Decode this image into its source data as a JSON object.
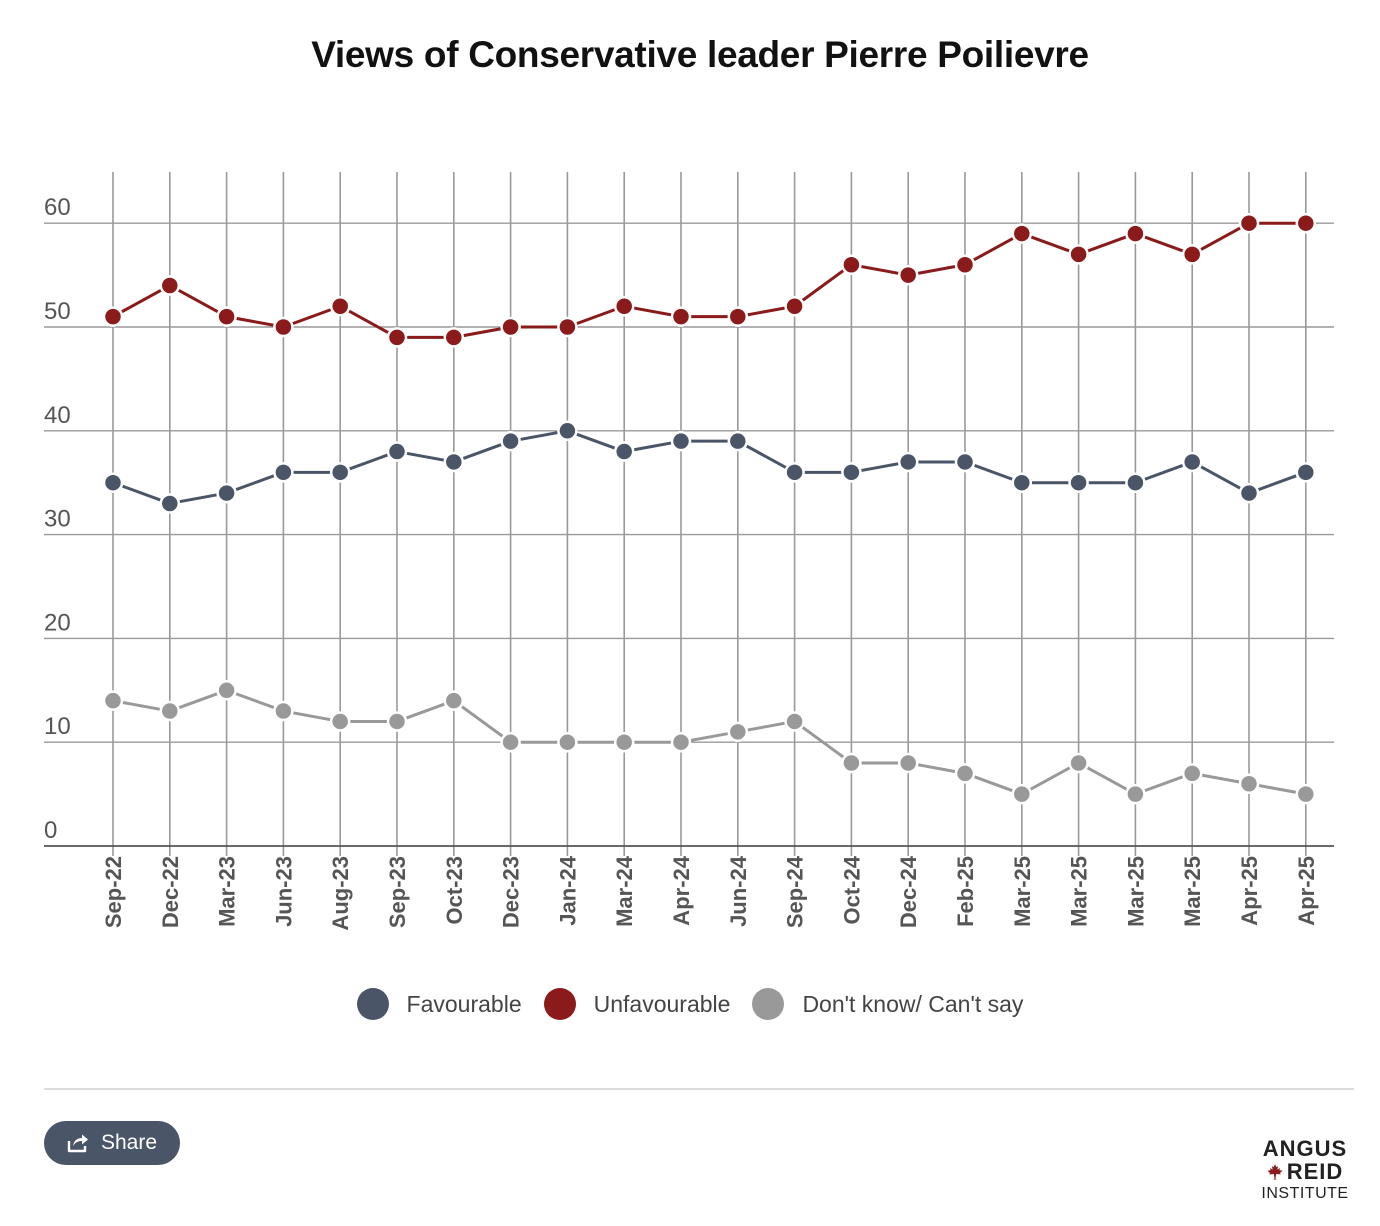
{
  "title": "Views of Conservative leader Pierre Poilievre",
  "chart_data": {
    "type": "line",
    "title": "Views of Conservative leader Pierre Poilievre",
    "xlabel": "",
    "ylabel": "",
    "categories": [
      "Sep-22",
      "Dec-22",
      "Mar-23",
      "Jun-23",
      "Aug-23",
      "Sep-23",
      "Oct-23",
      "Dec-23",
      "Jan-24",
      "Mar-24",
      "Apr-24",
      "Jun-24",
      "Sep-24",
      "Oct-24",
      "Dec-24",
      "Feb-25",
      "Mar-25",
      "Mar-25",
      "Mar-25",
      "Mar-25",
      "Apr-25",
      "Apr-25"
    ],
    "yticks": [
      0,
      10,
      20,
      30,
      40,
      50,
      60
    ],
    "ylim": [
      0,
      65
    ],
    "grid": true,
    "legend_position": "bottom",
    "series": [
      {
        "name": "Favourable",
        "color": "#4a5568",
        "values": [
          35,
          33,
          34,
          36,
          36,
          38,
          37,
          39,
          40,
          38,
          39,
          39,
          36,
          36,
          37,
          37,
          35,
          35,
          35,
          37,
          34,
          36
        ]
      },
      {
        "name": "Unfavourable",
        "color": "#8b1a1a",
        "values": [
          51,
          54,
          51,
          50,
          52,
          49,
          49,
          50,
          50,
          52,
          51,
          51,
          52,
          56,
          55,
          56,
          59,
          57,
          59,
          57,
          60,
          60
        ]
      },
      {
        "name": "Don't know/ Can't say",
        "color": "#999999",
        "values": [
          14,
          13,
          15,
          13,
          12,
          12,
          14,
          10,
          10,
          10,
          10,
          11,
          12,
          8,
          8,
          7,
          5,
          8,
          5,
          7,
          6,
          5
        ]
      }
    ]
  },
  "share": {
    "label": "Share"
  },
  "logo": {
    "line1": "ANGUS",
    "line2": "REID",
    "line3": "INSTITUTE"
  }
}
